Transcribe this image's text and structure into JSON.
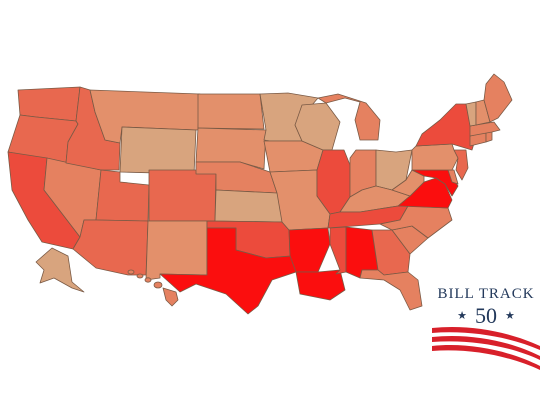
{
  "colors": {
    "palest": "#d8a47e",
    "pale": "#e3906b",
    "light": "#e58160",
    "medium": "#e8684f",
    "strong": "#ec4b3c",
    "max": "#fb0e0e",
    "logo_navy": "#23395b",
    "logo_red": "#d8202a"
  },
  "states": {
    "WA": "medium",
    "OR": "medium",
    "CA": "strong",
    "NV": "light",
    "ID": "medium",
    "MT": "pale",
    "WY": "palest",
    "UT": "medium",
    "AZ": "medium",
    "CO": "medium",
    "NM": "pale",
    "ND": "pale",
    "SD": "pale",
    "NE": "light",
    "KS": "palest",
    "OK": "strong",
    "TX": "max",
    "MN": "palest",
    "IA": "pale",
    "MO": "pale",
    "AR": "max",
    "LA": "max",
    "WI": "palest",
    "IL": "strong",
    "MI": "light",
    "IN": "light",
    "OH": "palest",
    "KY": "pale",
    "TN": "strong",
    "MS": "strong",
    "AL": "max",
    "GA": "medium",
    "FL": "light",
    "SC": "light",
    "NC": "light",
    "VA": "max",
    "WV": "pale",
    "MD": "max",
    "DE": "light",
    "PA": "pale",
    "NY": "strong",
    "NJ": "medium",
    "CT": "light",
    "RI": "light",
    "MA": "light",
    "VT": "palest",
    "NH": "pale",
    "ME": "light",
    "AK": "palest",
    "HI": "light"
  },
  "logo": {
    "title": "BILL TRACK",
    "number": "50",
    "star": "★"
  }
}
